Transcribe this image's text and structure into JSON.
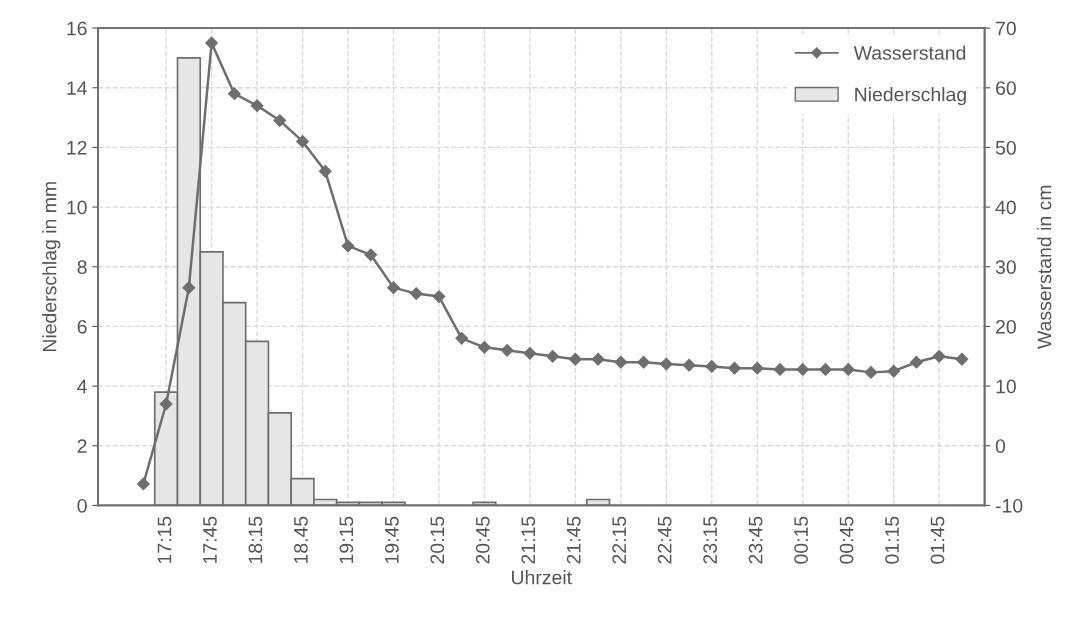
{
  "chart_data": {
    "type": "bar",
    "xlabel": "Uhrzeit",
    "ylabel": "Niederschlag in mm",
    "y2label": "Wasserstand in cm",
    "categories": [
      null,
      "17:15",
      null,
      "17:45",
      null,
      "18:15",
      null,
      "18.45",
      null,
      "19:15",
      null,
      "19:45",
      null,
      "20:15",
      null,
      "20:45",
      null,
      "21:15",
      null,
      "21:45",
      null,
      "22:15",
      null,
      "22:45",
      null,
      "23:15",
      null,
      "23:45",
      null,
      "00:15",
      null,
      "00:45",
      null,
      "01:15",
      null,
      "01:45",
      null
    ],
    "ylim": [
      0,
      16
    ],
    "yticks": [
      0,
      2,
      4,
      6,
      8,
      10,
      12,
      14,
      16
    ],
    "y2lim": [
      -10,
      70
    ],
    "y2ticks": [
      -10,
      0,
      10,
      20,
      30,
      40,
      50,
      60,
      70
    ],
    "grid": true,
    "legend": "top right",
    "series": [
      {
        "name": "Wasserstand",
        "type": "line",
        "axis": "y2",
        "color": "#6e6e6e",
        "marker": "diamond",
        "values": [
          -6.4,
          7,
          26.5,
          67.5,
          59,
          57,
          54.5,
          51,
          46,
          33.5,
          32,
          26.5,
          25.5,
          25,
          18,
          16.5,
          16,
          15.5,
          15,
          14.5,
          14.5,
          14,
          14,
          13.7,
          13.5,
          13.3,
          13,
          13,
          12.8,
          12.8,
          12.8,
          12.8,
          12.3,
          12.5,
          14,
          15,
          14.5
        ]
      },
      {
        "name": "Niederschlag",
        "color": "#e6e6e6",
        "values": [
          null,
          3.8,
          15,
          8.5,
          6.8,
          5.5,
          3.1,
          0.9,
          0.2,
          0.1,
          0.1,
          0.1,
          null,
          null,
          null,
          0.1,
          null,
          null,
          null,
          null,
          0.2,
          null,
          null,
          null,
          null,
          null,
          null,
          null,
          null,
          null,
          null,
          null,
          null,
          null,
          null,
          null,
          null
        ]
      }
    ]
  }
}
